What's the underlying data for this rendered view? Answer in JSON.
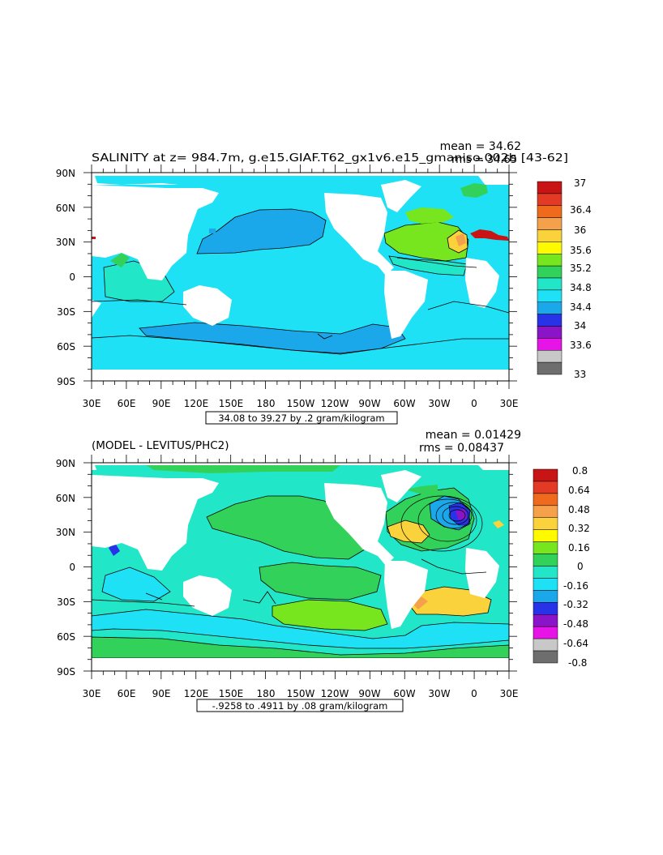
{
  "panels": [
    {
      "title": "SALINITY at z= 984.7m, g.e15.GIAF.T62_gx1v6.e15_gmaniso.002b [43-62]",
      "mean_text": "mean = 34.62",
      "rms_text": "rms = 34.65",
      "range_text": "34.08 to 39.27 by .2 gram/kilogram",
      "y_ticks": [
        "90N",
        "60N",
        "30N",
        "0",
        "30S",
        "60S",
        "90S"
      ],
      "x_ticks": [
        "30E",
        "60E",
        "90E",
        "120E",
        "150E",
        "180",
        "150W",
        "120W",
        "90W",
        "60W",
        "30W",
        "0",
        "30E"
      ],
      "colorbar": {
        "labels": [
          "37",
          "36.4",
          "36",
          "35.6",
          "35.2",
          "34.8",
          "34.4",
          "34",
          "33.6",
          "33"
        ],
        "colors": [
          "#c81414",
          "#e23a24",
          "#f06a1e",
          "#f5a04b",
          "#fad23c",
          "#fffa00",
          "#78e61e",
          "#32d25a",
          "#22e6c8",
          "#1ee1f5",
          "#1aa8ea",
          "#2832e6",
          "#8c14c8",
          "#e614e6",
          "#c8c8c8",
          "#6e6e6e"
        ]
      }
    },
    {
      "title": "(MODEL - LEVITUS/PHC2)",
      "mean_text": "mean = 0.01429",
      "rms_text": "rms = 0.08437",
      "range_text": "-.9258 to .4911 by .08 gram/kilogram",
      "y_ticks": [
        "90N",
        "60N",
        "30N",
        "0",
        "30S",
        "60S",
        "90S"
      ],
      "x_ticks": [
        "30E",
        "60E",
        "90E",
        "120E",
        "150E",
        "180",
        "150W",
        "120W",
        "90W",
        "60W",
        "30W",
        "0",
        "30E"
      ],
      "colorbar": {
        "labels": [
          "0.8",
          "0.64",
          "0.48",
          "0.32",
          "0.16",
          "0",
          "-0.16",
          "-0.32",
          "-0.48",
          "-0.64",
          "-0.8"
        ],
        "colors": [
          "#c81414",
          "#e23a24",
          "#f06a1e",
          "#f5a04b",
          "#fad23c",
          "#fffa00",
          "#78e61e",
          "#32d25a",
          "#22e6c8",
          "#1ee1f5",
          "#1aa8ea",
          "#2832e6",
          "#8c14c8",
          "#e614e6",
          "#c8c8c8",
          "#6e6e6e"
        ]
      }
    }
  ]
}
